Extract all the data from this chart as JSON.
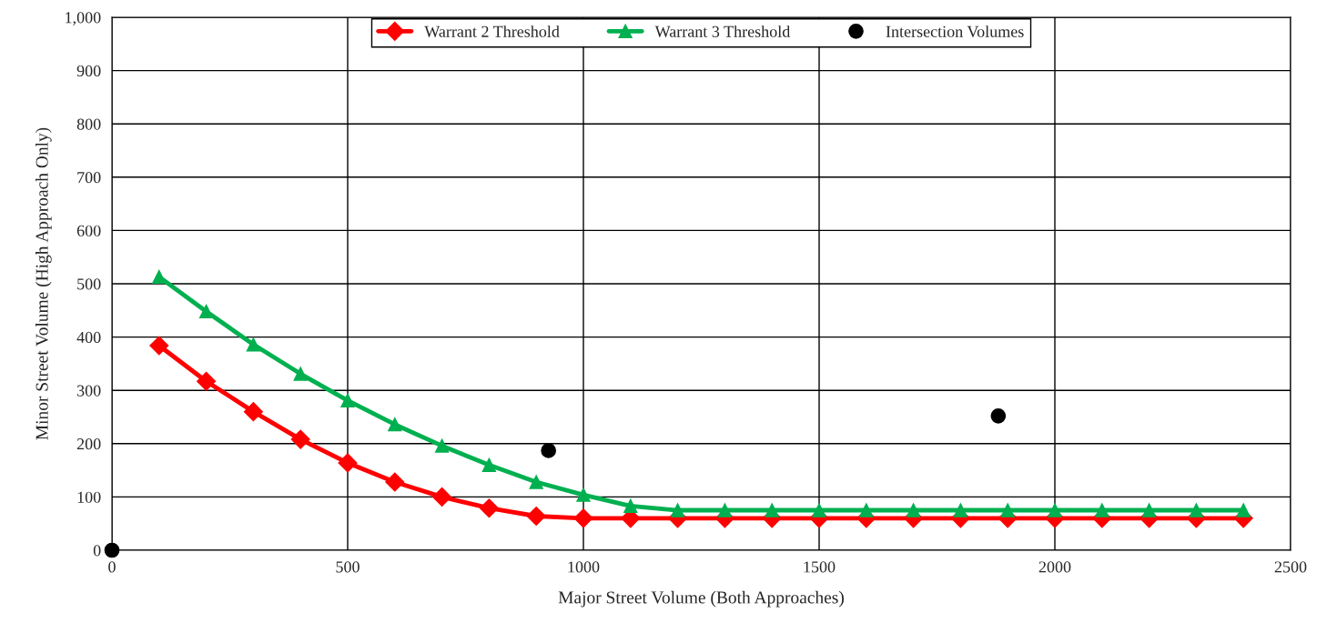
{
  "chart_data": {
    "type": "line",
    "xlabel": "Major Street Volume (Both Approaches)",
    "ylabel": "Minor Street Volume (High Approach Only)",
    "xlim": [
      0,
      2500
    ],
    "xticks": [
      0,
      500,
      1000,
      1500,
      2000,
      2500
    ],
    "ylim": [
      0,
      1000
    ],
    "yticks": [
      0,
      100,
      200,
      300,
      400,
      500,
      600,
      700,
      800,
      900,
      {
        "value": 1000,
        "label": "1,000"
      }
    ],
    "grid": true,
    "legend": "top",
    "line_style": "solid",
    "series": [
      {
        "name": "Warrant 2 Threshold",
        "marker": "diamond",
        "color": "#ff0000",
        "x": [
          100,
          200,
          300,
          400,
          500,
          600,
          700,
          800,
          900,
          1000,
          1100,
          1200,
          1300,
          1400,
          1500,
          1600,
          1700,
          1800,
          1900,
          2000,
          2100,
          2200,
          2300,
          2400
        ],
        "values": [
          384,
          317,
          260,
          208,
          164,
          128,
          100,
          79,
          64,
          60,
          60,
          60,
          60,
          60,
          60,
          60,
          60,
          60,
          60,
          60,
          60,
          60,
          60,
          60
        ]
      },
      {
        "name": "Warrant 3 Threshold",
        "marker": "triangle",
        "color": "#00b050",
        "x": [
          100,
          200,
          300,
          400,
          500,
          600,
          700,
          800,
          900,
          1000,
          1100,
          1200,
          1300,
          1400,
          1500,
          1600,
          1700,
          1800,
          1900,
          2000,
          2100,
          2200,
          2300,
          2400
        ],
        "values": [
          513,
          448,
          386,
          331,
          281,
          236,
          196,
          160,
          128,
          104,
          83,
          75,
          75,
          75,
          75,
          75,
          75,
          75,
          75,
          75,
          75,
          75,
          75,
          75
        ]
      },
      {
        "name": "Intersection Volumes",
        "type": "scatter",
        "marker": "circle",
        "color": "#000000",
        "x": [
          0,
          926,
          1880
        ],
        "values": [
          0,
          187,
          252
        ]
      }
    ]
  }
}
